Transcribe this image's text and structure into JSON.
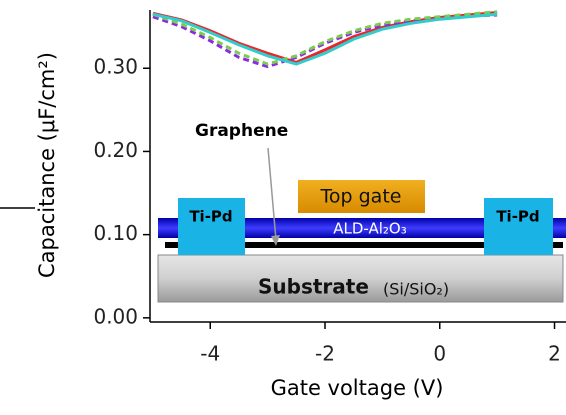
{
  "chart_data": {
    "type": "line",
    "xlabel": "Gate voltage (V)",
    "ylabel": "Capacitance (μF/cm²)",
    "x": [
      -5,
      -4.5,
      -4,
      -3.5,
      -3,
      -2.5,
      -2,
      -1.5,
      -1,
      -0.5,
      0,
      0.5,
      1
    ],
    "series": [
      {
        "color": "#e8262a",
        "style": "solid",
        "values": [
          0.366,
          0.358,
          0.345,
          0.33,
          0.318,
          0.307,
          0.322,
          0.338,
          0.349,
          0.356,
          0.361,
          0.364,
          0.367
        ]
      },
      {
        "color": "#8a2be2",
        "style": "dashed",
        "values": [
          0.362,
          0.35,
          0.333,
          0.313,
          0.302,
          0.313,
          0.33,
          0.343,
          0.352,
          0.357,
          0.361,
          0.363,
          0.364
        ]
      },
      {
        "color": "#7ccd4c",
        "style": "dashed",
        "values": [
          0.365,
          0.353,
          0.337,
          0.318,
          0.305,
          0.315,
          0.332,
          0.345,
          0.354,
          0.359,
          0.362,
          0.365,
          0.368
        ]
      },
      {
        "color": "#33cccc",
        "style": "solid",
        "values": [
          0.365,
          0.357,
          0.343,
          0.328,
          0.315,
          0.305,
          0.318,
          0.335,
          0.347,
          0.354,
          0.359,
          0.362,
          0.365
        ]
      }
    ],
    "xlim": [
      -5.05,
      2.2
    ],
    "ylim": [
      -0.005,
      0.37
    ],
    "xticks": [
      -4,
      -2,
      0,
      2
    ],
    "yticks": [
      {
        "value": 0,
        "label": "0.00"
      },
      {
        "value": 0.1,
        "label": "0.10"
      },
      {
        "value": 0.2,
        "label": "0.20"
      },
      {
        "value": 0.3,
        "label": "0.30"
      }
    ],
    "annotations": [
      "Graphene",
      "Top gate",
      "ALD-Al₂O₃",
      "Ti-Pd",
      "Ti-Pd",
      "Substrate",
      "(Si/SiO₂)"
    ]
  }
}
